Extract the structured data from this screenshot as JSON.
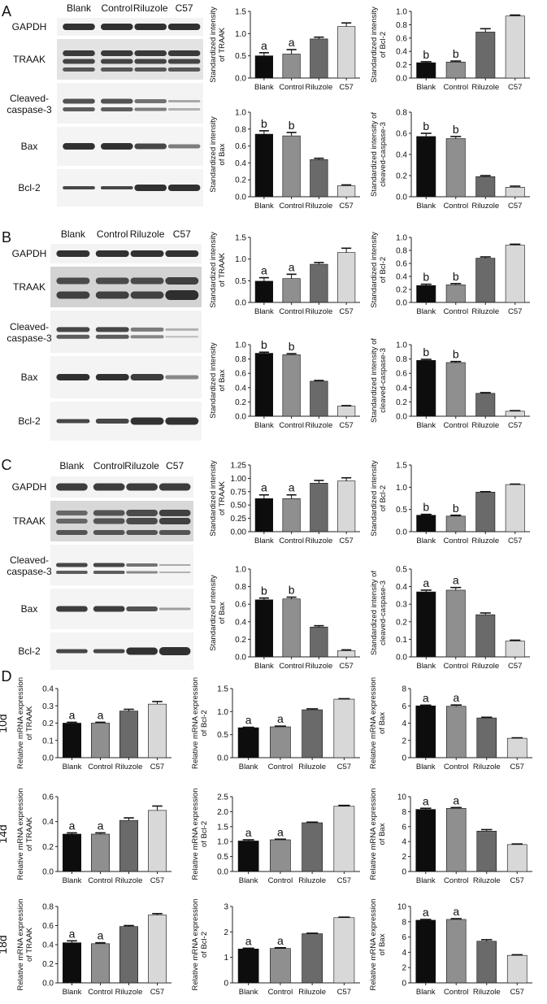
{
  "categories": [
    "Blank",
    "Control",
    "Riluzole",
    "C57"
  ],
  "panel_letters": [
    "A",
    "B",
    "C",
    "D"
  ],
  "blot_labels": {
    "gapdh": "GAPDH",
    "traak": "TRAAK",
    "cleaved": [
      "Cleaved-",
      "caspase-3"
    ],
    "bax": "Bax",
    "bcl2": "Bcl-2"
  },
  "row_labels": [
    "10d",
    "14d",
    "18d"
  ],
  "chart_data": [
    {
      "id": "A1",
      "type": "bar",
      "ylabel": [
        "Standardized intensity",
        "of TRAAK"
      ],
      "ylim": [
        0,
        1.5
      ],
      "yticks": [
        "0.0",
        "0.5",
        "1.0",
        "1.5"
      ],
      "values": [
        0.5,
        0.54,
        0.88,
        1.16
      ],
      "errors": [
        0.07,
        0.1,
        0.04,
        0.08
      ],
      "letters": [
        "a",
        "a",
        "",
        ""
      ]
    },
    {
      "id": "A2",
      "type": "bar",
      "ylabel": [
        "Standardized intensity",
        "of Bcl-2"
      ],
      "ylim": [
        0,
        1.0
      ],
      "yticks": [
        "0.0",
        "0.2",
        "0.4",
        "0.6",
        "0.8",
        "1.0"
      ],
      "values": [
        0.23,
        0.24,
        0.69,
        0.93
      ],
      "errors": [
        0.015,
        0.015,
        0.05,
        0.015
      ],
      "letters": [
        "b",
        "b",
        "",
        ""
      ]
    },
    {
      "id": "A3",
      "type": "bar",
      "ylabel": [
        "Standardized intensity",
        "of Bax"
      ],
      "ylim": [
        0,
        1.0
      ],
      "yticks": [
        "0.0",
        "0.2",
        "0.4",
        "0.6",
        "0.8",
        "1.0"
      ],
      "values": [
        0.74,
        0.72,
        0.44,
        0.13
      ],
      "errors": [
        0.04,
        0.04,
        0.015,
        0.01
      ],
      "letters": [
        "b",
        "b",
        "",
        ""
      ]
    },
    {
      "id": "A4",
      "type": "bar",
      "ylabel": [
        "Standardized intensity of",
        "cleaved-caspase-3"
      ],
      "ylim": [
        0,
        0.8
      ],
      "yticks": [
        "0.0",
        "0.2",
        "0.4",
        "0.6",
        "0.8"
      ],
      "values": [
        0.57,
        0.55,
        0.19,
        0.09
      ],
      "errors": [
        0.03,
        0.02,
        0.01,
        0.01
      ],
      "letters": [
        "b",
        "b",
        "",
        ""
      ]
    },
    {
      "id": "B1",
      "type": "bar",
      "ylabel": [
        "Standardized intensity",
        "of TRAAK"
      ],
      "ylim": [
        0,
        1.5
      ],
      "yticks": [
        "0.0",
        "0.5",
        "1.0",
        "1.5"
      ],
      "values": [
        0.49,
        0.55,
        0.88,
        1.15
      ],
      "errors": [
        0.08,
        0.1,
        0.04,
        0.1
      ],
      "letters": [
        "a",
        "a",
        "",
        ""
      ]
    },
    {
      "id": "B2",
      "type": "bar",
      "ylabel": [
        "Standardized intensity",
        "of Bcl-2"
      ],
      "ylim": [
        0,
        1.0
      ],
      "yticks": [
        "0.0",
        "0.2",
        "0.4",
        "0.6",
        "0.8",
        "1.0"
      ],
      "values": [
        0.26,
        0.27,
        0.68,
        0.88
      ],
      "errors": [
        0.02,
        0.02,
        0.02,
        0.015
      ],
      "letters": [
        "b",
        "b",
        "",
        ""
      ]
    },
    {
      "id": "B3",
      "type": "bar",
      "ylabel": [
        "Standardized intensity",
        "of Bax"
      ],
      "ylim": [
        0,
        1.0
      ],
      "yticks": [
        "0.0",
        "0.2",
        "0.4",
        "0.6",
        "0.8",
        "1.0"
      ],
      "values": [
        0.88,
        0.86,
        0.49,
        0.14
      ],
      "errors": [
        0.015,
        0.015,
        0.01,
        0.008
      ],
      "letters": [
        "b",
        "b",
        "",
        ""
      ]
    },
    {
      "id": "B4",
      "type": "bar",
      "ylabel": [
        "Standardized intensity of",
        "cleaved-caspase-3"
      ],
      "ylim": [
        0,
        1.0
      ],
      "yticks": [
        "0.0",
        "0.2",
        "0.4",
        "0.6",
        "0.8",
        "1.0"
      ],
      "values": [
        0.78,
        0.75,
        0.32,
        0.07
      ],
      "errors": [
        0.015,
        0.015,
        0.01,
        0.008
      ],
      "letters": [
        "b",
        "b",
        "",
        ""
      ]
    },
    {
      "id": "C1",
      "type": "bar",
      "ylabel": [
        "Standardized intensity",
        "of TRAAK"
      ],
      "ylim": [
        0,
        1.25
      ],
      "yticks": [
        "0.00",
        "0.25",
        "0.50",
        "0.75",
        "1.00",
        "1.25"
      ],
      "values": [
        0.62,
        0.62,
        0.91,
        0.95
      ],
      "errors": [
        0.07,
        0.07,
        0.05,
        0.06
      ],
      "letters": [
        "a",
        "a",
        "",
        ""
      ]
    },
    {
      "id": "C2",
      "type": "bar",
      "ylabel": [
        "Standardized intensity",
        "of Bcl-2"
      ],
      "ylim": [
        0,
        1.5
      ],
      "yticks": [
        "0.0",
        "0.5",
        "1.0",
        "1.5"
      ],
      "values": [
        0.37,
        0.35,
        0.89,
        1.06
      ],
      "errors": [
        0.02,
        0.02,
        0.01,
        0.01
      ],
      "letters": [
        "b",
        "b",
        "",
        ""
      ]
    },
    {
      "id": "C3",
      "type": "bar",
      "ylabel": [
        "Standardized intensity",
        "of Bax"
      ],
      "ylim": [
        0,
        1.0
      ],
      "yticks": [
        "0.0",
        "0.2",
        "0.4",
        "0.6",
        "0.8",
        "1.0"
      ],
      "values": [
        0.65,
        0.66,
        0.34,
        0.07
      ],
      "errors": [
        0.02,
        0.02,
        0.015,
        0.01
      ],
      "letters": [
        "b",
        "b",
        "",
        ""
      ]
    },
    {
      "id": "C4",
      "type": "bar",
      "ylabel": [
        "Standardized intensity of",
        "cleaved-caspase-3"
      ],
      "ylim": [
        0,
        0.5
      ],
      "yticks": [
        "0.0",
        "0.1",
        "0.2",
        "0.3",
        "0.4",
        "0.5"
      ],
      "values": [
        0.37,
        0.38,
        0.24,
        0.09
      ],
      "errors": [
        0.01,
        0.015,
        0.01,
        0.005
      ],
      "letters": [
        "a",
        "a",
        "",
        ""
      ]
    },
    {
      "id": "D1",
      "type": "bar",
      "ylabel": [
        "Relative mRNA expression",
        "of TRAAK"
      ],
      "ylim": [
        0,
        0.4
      ],
      "yticks": [
        "0.0",
        "0.1",
        "0.2",
        "0.3",
        "0.4"
      ],
      "values": [
        0.2,
        0.2,
        0.27,
        0.31
      ],
      "errors": [
        0.005,
        0.005,
        0.01,
        0.015
      ],
      "letters": [
        "a",
        "a",
        "",
        ""
      ]
    },
    {
      "id": "D2",
      "type": "bar",
      "ylabel": [
        "Relative mRNA expression",
        "of Bcl-2"
      ],
      "ylim": [
        0,
        1.5
      ],
      "yticks": [
        "0.0",
        "0.5",
        "1.0",
        "1.5"
      ],
      "values": [
        0.65,
        0.67,
        1.04,
        1.27
      ],
      "errors": [
        0.01,
        0.015,
        0.02,
        0.01
      ],
      "letters": [
        "a",
        "a",
        "",
        ""
      ]
    },
    {
      "id": "D3",
      "type": "bar",
      "ylabel": [
        "Relative mRNA expression",
        "of Bax"
      ],
      "ylim": [
        0,
        8
      ],
      "yticks": [
        "0",
        "2",
        "4",
        "6",
        "8"
      ],
      "values": [
        6.0,
        5.95,
        4.6,
        2.25
      ],
      "errors": [
        0.08,
        0.15,
        0.08,
        0.05
      ],
      "letters": [
        "a",
        "a",
        "",
        ""
      ]
    },
    {
      "id": "D4",
      "type": "bar",
      "ylabel": [
        "Relative mRNA expression",
        "of TRAAK"
      ],
      "ylim": [
        0,
        0.6
      ],
      "yticks": [
        "0.0",
        "0.2",
        "0.4",
        "0.6"
      ],
      "values": [
        0.3,
        0.3,
        0.41,
        0.49
      ],
      "errors": [
        0.01,
        0.01,
        0.02,
        0.035
      ],
      "letters": [
        "a",
        "a",
        "",
        ""
      ]
    },
    {
      "id": "D5",
      "type": "bar",
      "ylabel": [
        "Relative mRNA expression",
        "of Bcl-2"
      ],
      "ylim": [
        0,
        2.5
      ],
      "yticks": [
        "0.0",
        "0.5",
        "1.0",
        "1.5",
        "2.0",
        "2.5"
      ],
      "values": [
        1.02,
        1.06,
        1.63,
        2.18
      ],
      "errors": [
        0.04,
        0.02,
        0.02,
        0.03
      ],
      "letters": [
        "a",
        "a",
        "",
        ""
      ]
    },
    {
      "id": "D6",
      "type": "bar",
      "ylabel": [
        "Relative mRNA expression",
        "of Bax"
      ],
      "ylim": [
        0,
        10
      ],
      "yticks": [
        "0",
        "2",
        "4",
        "6",
        "8",
        "10"
      ],
      "values": [
        8.3,
        8.45,
        5.4,
        3.6
      ],
      "errors": [
        0.15,
        0.1,
        0.2,
        0.08
      ],
      "letters": [
        "a",
        "a",
        "",
        ""
      ]
    },
    {
      "id": "D7",
      "type": "bar",
      "ylabel": [
        "Relative mRNA expression",
        "of TRAAK"
      ],
      "ylim": [
        0,
        0.8
      ],
      "yticks": [
        "0.0",
        "0.2",
        "0.4",
        "0.6",
        "0.8"
      ],
      "values": [
        0.42,
        0.41,
        0.59,
        0.71
      ],
      "errors": [
        0.02,
        0.01,
        0.01,
        0.015
      ],
      "letters": [
        "a",
        "a",
        "",
        ""
      ]
    },
    {
      "id": "D8",
      "type": "bar",
      "ylabel": [
        "Relative mRNA expression",
        "of Bcl-2"
      ],
      "ylim": [
        0,
        3
      ],
      "yticks": [
        "0",
        "1",
        "2",
        "3"
      ],
      "values": [
        1.33,
        1.35,
        1.93,
        2.56
      ],
      "errors": [
        0.03,
        0.03,
        0.02,
        0.02
      ],
      "letters": [
        "a",
        "a",
        "",
        ""
      ]
    },
    {
      "id": "D9",
      "type": "bar",
      "ylabel": [
        "Relative mRNA expression",
        "of Bax"
      ],
      "ylim": [
        0,
        10
      ],
      "yticks": [
        "0",
        "2",
        "4",
        "6",
        "8",
        "10"
      ],
      "values": [
        8.2,
        8.3,
        5.45,
        3.6
      ],
      "errors": [
        0.1,
        0.1,
        0.2,
        0.08
      ],
      "letters": [
        "a",
        "a",
        "",
        ""
      ]
    }
  ],
  "colors": {
    "bars": [
      "#0d0d0d",
      "#8f8f8f",
      "#6a6a6a",
      "#d8d8d8"
    ],
    "axis": "#222222",
    "band": "#1c1c1c"
  }
}
